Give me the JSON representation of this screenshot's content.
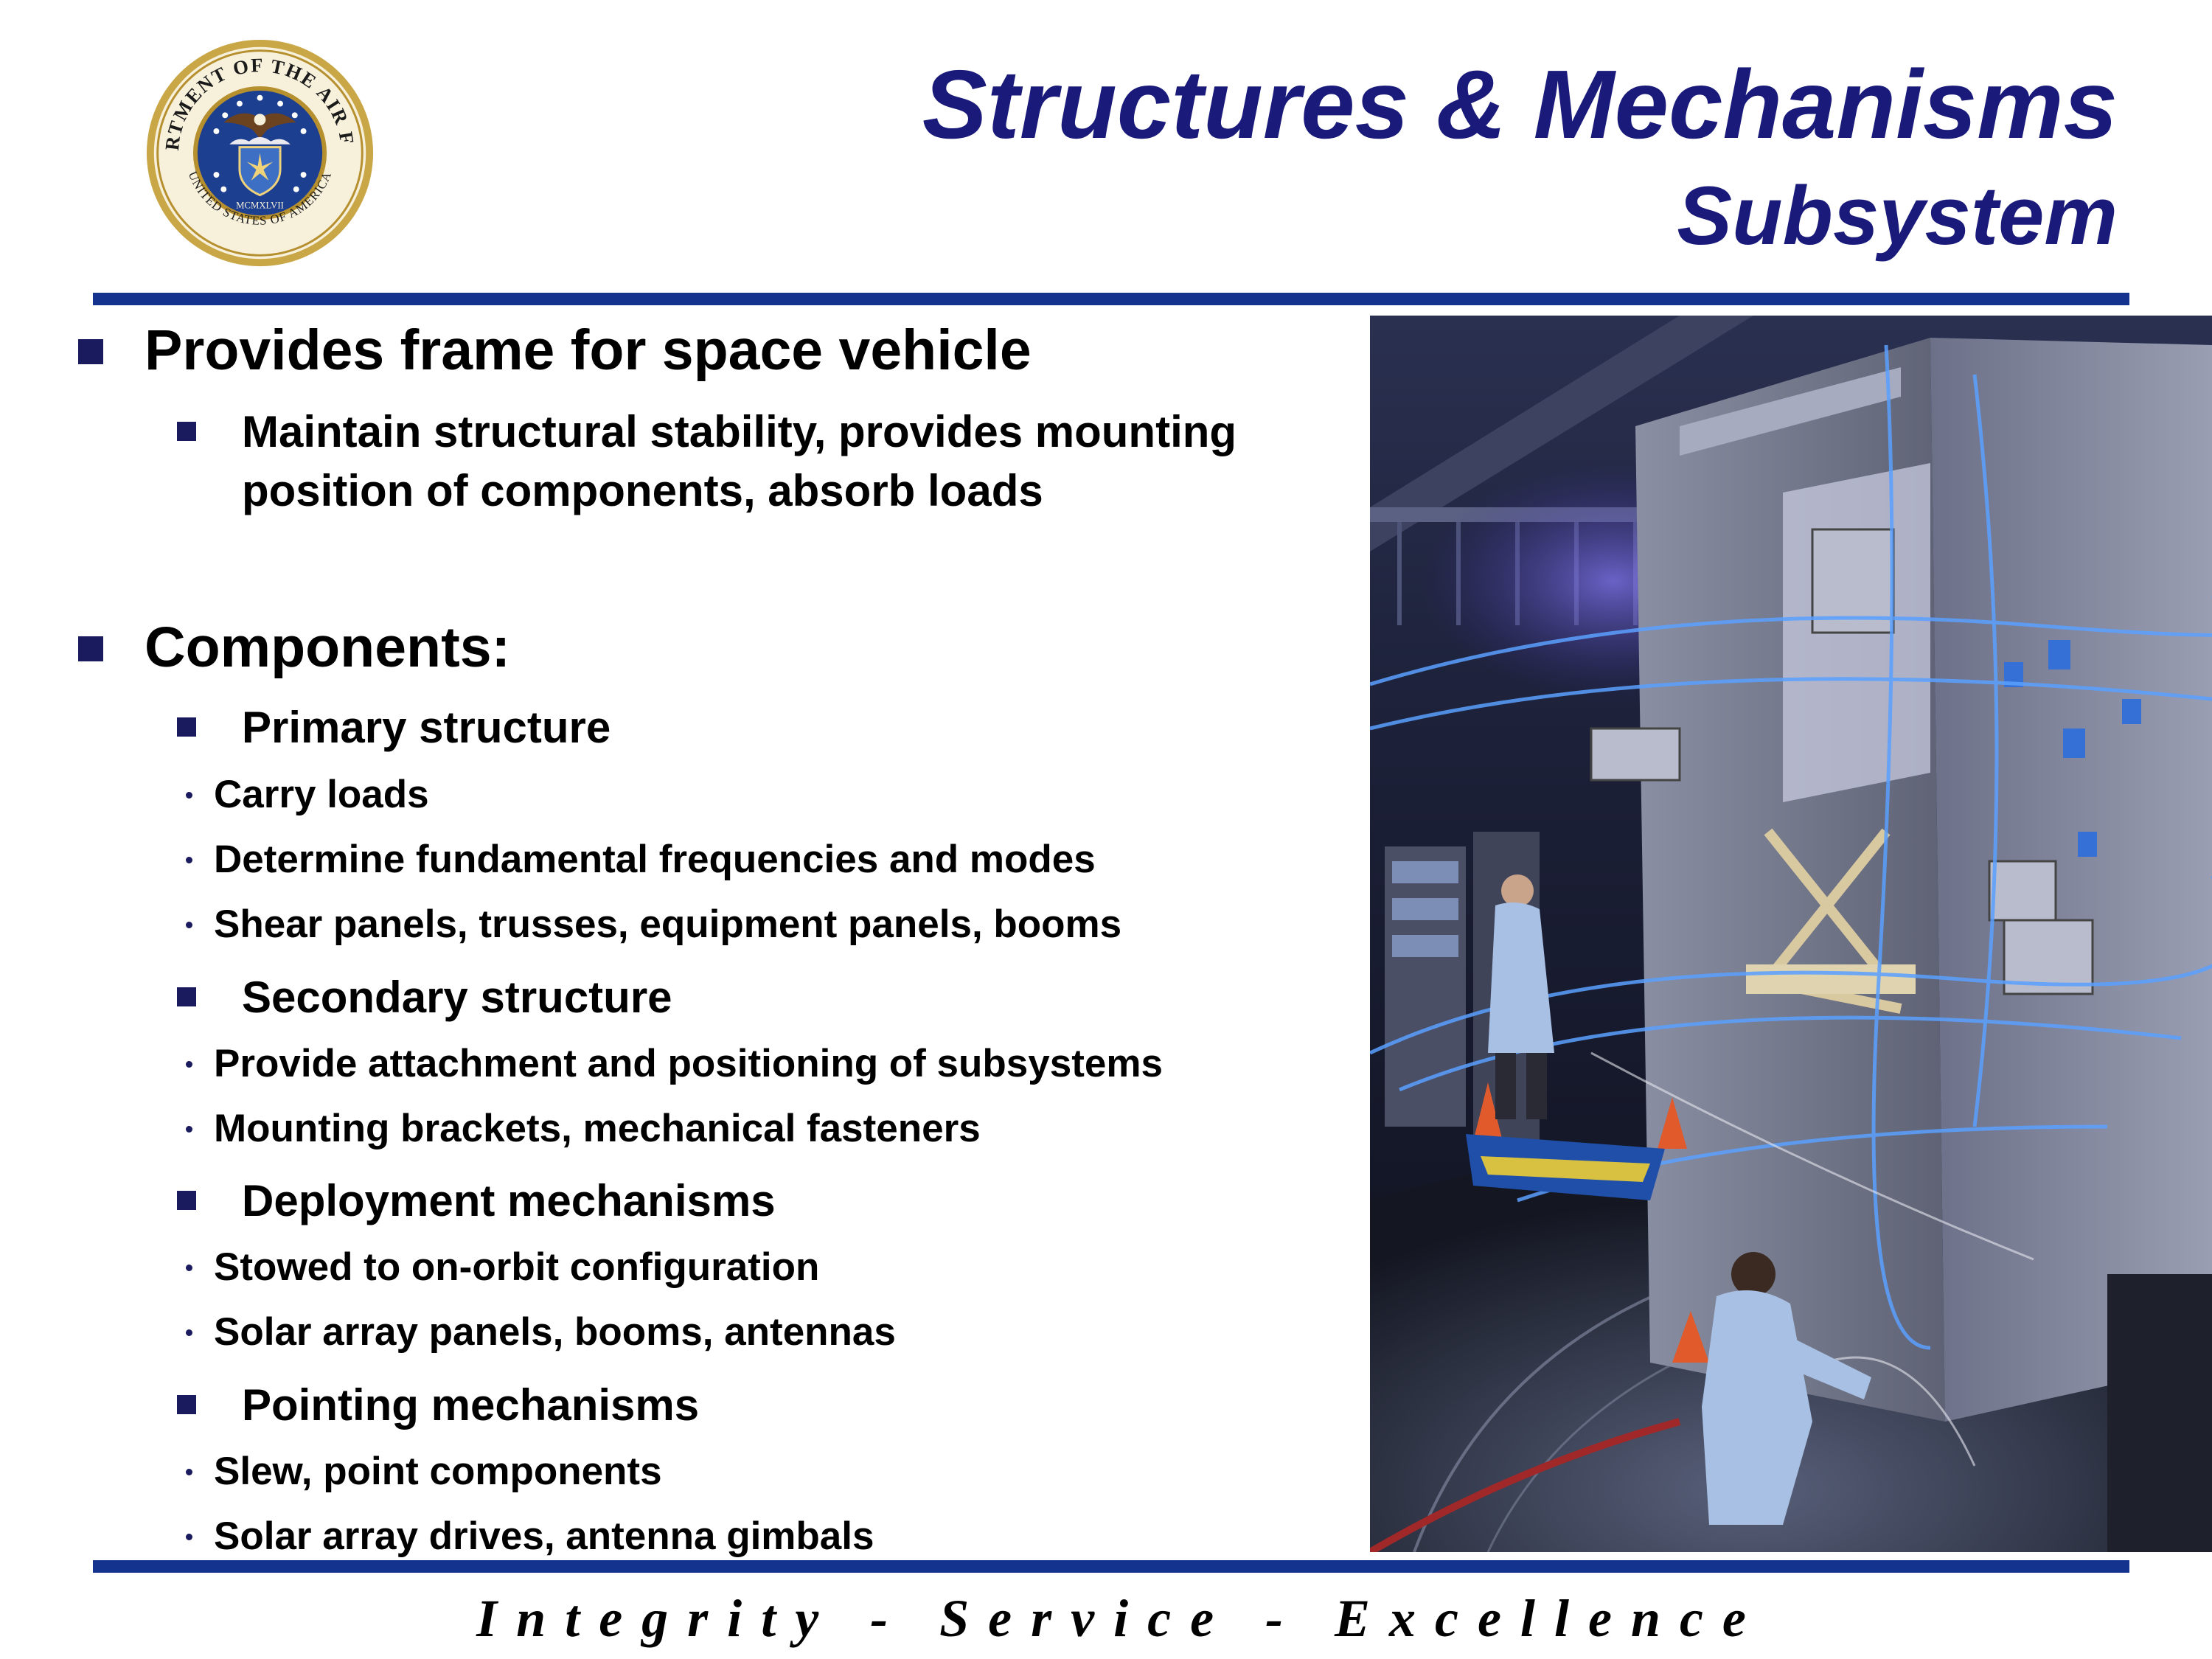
{
  "header": {
    "title": "Structures & Mechanisms",
    "subtitle": "Subsystem",
    "seal": {
      "name": "department-of-the-air-force-seal",
      "text_top": "DEPARTMENT OF THE AIR FORCE",
      "text_bottom": "UNITED STATES OF AMERICA",
      "year": "MCMXLVII"
    }
  },
  "bullets": {
    "b1": {
      "text": "Provides frame for space vehicle",
      "sub": [
        "Maintain structural stability, provides mounting position of components, absorb loads"
      ]
    },
    "b2": {
      "text": "Components:",
      "groups": [
        {
          "label": "Primary structure",
          "items": [
            "Carry loads",
            "Determine fundamental frequencies and modes",
            "Shear panels, trusses, equipment panels, booms"
          ]
        },
        {
          "label": "Secondary structure",
          "items": [
            "Provide attachment and positioning of subsystems",
            "Mounting brackets, mechanical fasteners"
          ]
        },
        {
          "label": "Deployment mechanisms",
          "items": [
            "Stowed to on-orbit configuration",
            "Solar array panels, booms, antennas"
          ]
        },
        {
          "label": "Pointing mechanisms",
          "items": [
            "Slew, point components",
            "Solar array drives, antenna gimbals"
          ]
        }
      ]
    }
  },
  "footer": {
    "tagline": "Integrity - Service - Excellence"
  },
  "colors": {
    "title": "#1a1a7a",
    "rule": "#13338f",
    "bullet": "#1a1a5e"
  }
}
